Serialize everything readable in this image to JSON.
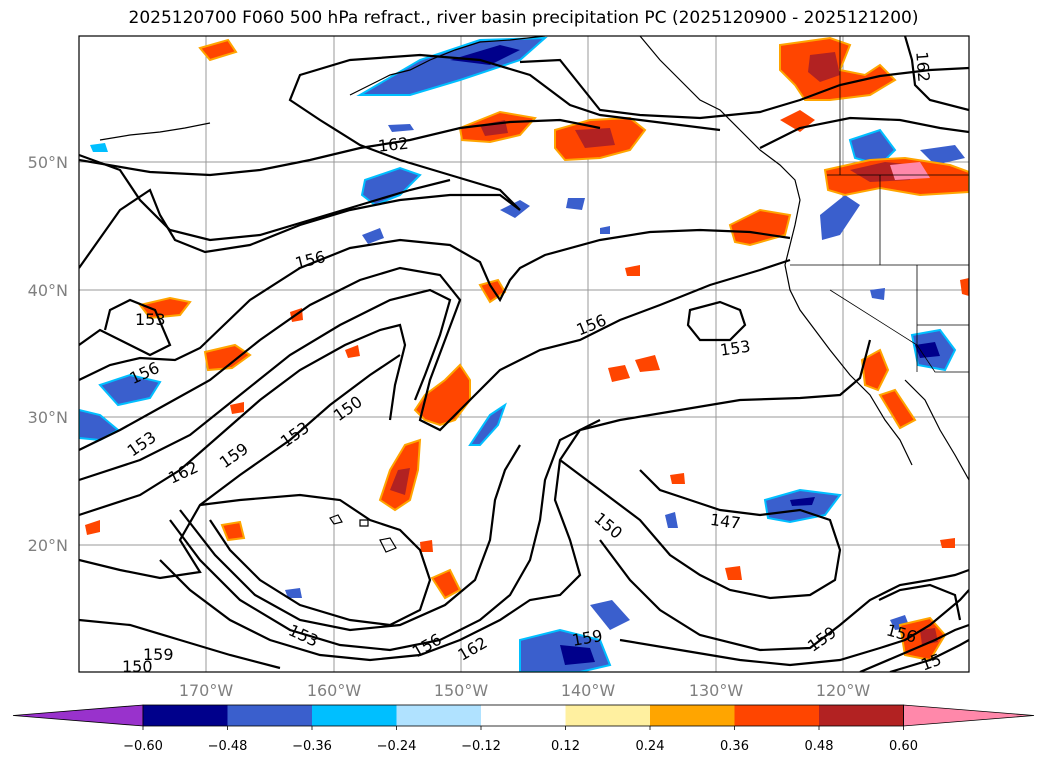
{
  "title": "2025120700 F060 500 hPa refract., river basin precipitation PC (2025120900 - 2025121200)",
  "map": {
    "lat_labels": [
      "50°N",
      "40°N",
      "30°N",
      "20°N"
    ],
    "lon_labels": [
      "170°W",
      "160°W",
      "150°W",
      "140°W",
      "130°W",
      "120°W"
    ],
    "contour_labels": [
      "162",
      "162",
      "156",
      "156",
      "153",
      "156",
      "153",
      "150",
      "153",
      "159",
      "162",
      "153",
      "150",
      "147",
      "156",
      "162",
      "159",
      "153",
      "159",
      "156",
      "159",
      "150",
      "15"
    ]
  },
  "colorbar": {
    "colors": [
      "#9932cc",
      "#00008b",
      "#3a5fcd",
      "#00bfff",
      "#b0e2ff",
      "#ffffff",
      "#fff0a0",
      "#ffa500",
      "#ff4500",
      "#b22222",
      "#ff88aa"
    ],
    "ticks": [
      "−0.60",
      "−0.48",
      "−0.36",
      "−0.24",
      "−0.12",
      "0.12",
      "0.24",
      "0.36",
      "0.48",
      "0.60"
    ]
  }
}
